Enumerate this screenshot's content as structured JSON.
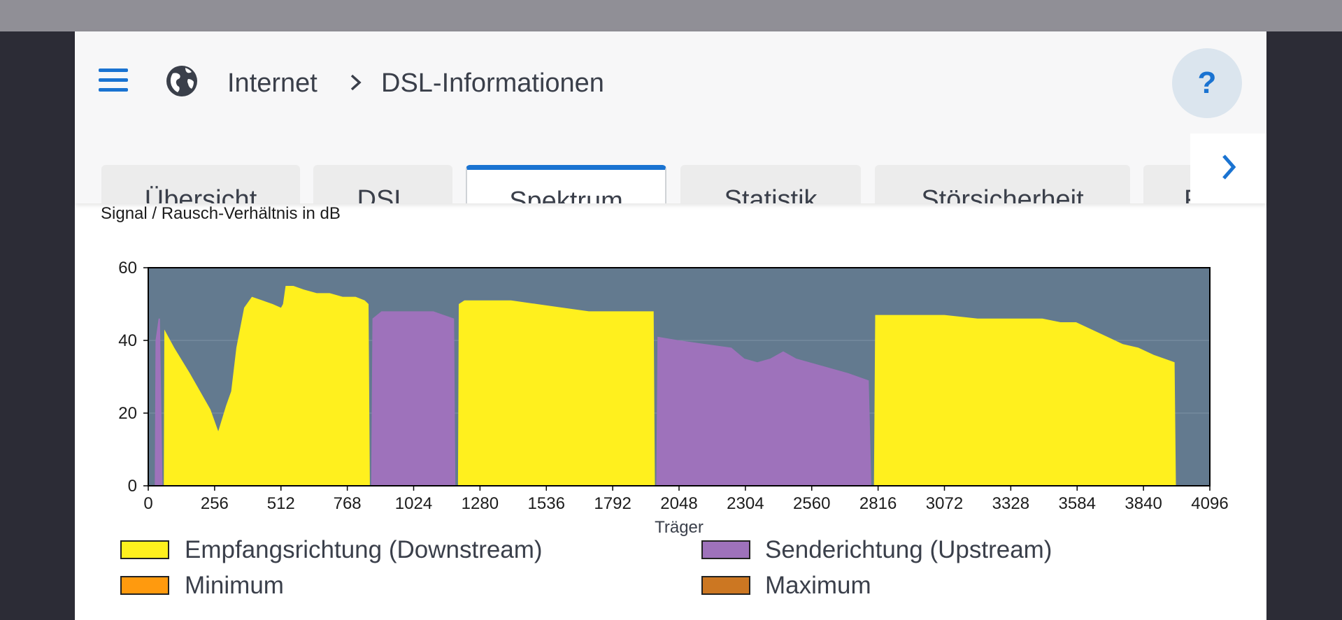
{
  "breadcrumb": {
    "section": "Internet",
    "page": "DSL-Informationen"
  },
  "help_label": "?",
  "tabs": [
    {
      "label": "Übersicht",
      "active": false
    },
    {
      "label": "DSL",
      "active": false
    },
    {
      "label": "Spektrum",
      "active": true
    },
    {
      "label": "Statistik",
      "active": false
    },
    {
      "label": "Störsicherheit",
      "active": false
    },
    {
      "label": "Fe…",
      "active": false
    }
  ],
  "colors": {
    "accent": "#1a73d1",
    "downstream": "#fff01e",
    "upstream": "#9e72bb",
    "minimum": "#ff9a0e",
    "maximum": "#cc7722",
    "plot_bg": "#637a8f"
  },
  "chart_data": {
    "type": "area",
    "title": "Signal / Rausch-Verhältnis in dB",
    "xlabel": "Träger",
    "ylabel": "",
    "xlim": [
      0,
      4096
    ],
    "ylim": [
      0,
      60
    ],
    "xticks": [
      0,
      256,
      512,
      768,
      1024,
      1280,
      1536,
      1792,
      2048,
      2304,
      2560,
      2816,
      3072,
      3328,
      3584,
      3840,
      4096
    ],
    "yticks": [
      0,
      20,
      40,
      60
    ],
    "grid": true,
    "legend_position": "bottom",
    "series": [
      {
        "name": "Senderichtung (Upstream)",
        "color": "#9e72bb",
        "segments": [
          [
            [
              25,
              0
            ],
            [
              28,
              40
            ],
            [
              40,
              46
            ],
            [
              45,
              46
            ],
            [
              55,
              0
            ]
          ],
          [
            [
              860,
              0
            ],
            [
              865,
              46
            ],
            [
              900,
              48
            ],
            [
              1000,
              48
            ],
            [
              1100,
              48
            ],
            [
              1180,
              46
            ],
            [
              1185,
              0
            ]
          ],
          [
            [
              1960,
              0
            ],
            [
              1965,
              41
            ],
            [
              2050,
              40
            ],
            [
              2150,
              39
            ],
            [
              2250,
              38
            ],
            [
              2300,
              35
            ],
            [
              2350,
              34
            ],
            [
              2400,
              35
            ],
            [
              2450,
              37
            ],
            [
              2500,
              35
            ],
            [
              2600,
              33
            ],
            [
              2700,
              31
            ],
            [
              2780,
              29
            ],
            [
              2790,
              0
            ]
          ]
        ]
      },
      {
        "name": "Empfangsrichtung (Downstream)",
        "color": "#fff01e",
        "segments": [
          [
            [
              60,
              0
            ],
            [
              62,
              43
            ],
            [
              100,
              38
            ],
            [
              160,
              31
            ],
            [
              200,
              26
            ],
            [
              240,
              21
            ],
            [
              270,
              15
            ],
            [
              300,
              22
            ],
            [
              320,
              26
            ],
            [
              340,
              38
            ],
            [
              370,
              49
            ],
            [
              400,
              52
            ],
            [
              440,
              51
            ],
            [
              480,
              50
            ],
            [
              512,
              49
            ],
            [
              520,
              50
            ],
            [
              530,
              55
            ],
            [
              560,
              55
            ],
            [
              600,
              54
            ],
            [
              650,
              53
            ],
            [
              700,
              53
            ],
            [
              750,
              52
            ],
            [
              800,
              52
            ],
            [
              835,
              51
            ],
            [
              850,
              50
            ],
            [
              855,
              0
            ]
          ],
          [
            [
              1195,
              0
            ],
            [
              1198,
              50
            ],
            [
              1220,
              51
            ],
            [
              1300,
              51
            ],
            [
              1400,
              51
            ],
            [
              1500,
              50
            ],
            [
              1600,
              49
            ],
            [
              1700,
              48
            ],
            [
              1792,
              48
            ],
            [
              1900,
              48
            ],
            [
              1950,
              48
            ],
            [
              1955,
              0
            ]
          ],
          [
            [
              2800,
              0
            ],
            [
              2805,
              47
            ],
            [
              2850,
              47
            ],
            [
              3000,
              47
            ],
            [
              3072,
              47
            ],
            [
              3200,
              46
            ],
            [
              3328,
              46
            ],
            [
              3450,
              46
            ],
            [
              3520,
              45
            ],
            [
              3580,
              45
            ],
            [
              3640,
              43
            ],
            [
              3700,
              41
            ],
            [
              3760,
              39
            ],
            [
              3820,
              38
            ],
            [
              3880,
              36
            ],
            [
              3920,
              35
            ],
            [
              3960,
              34
            ],
            [
              3965,
              0
            ]
          ]
        ]
      }
    ]
  },
  "legend": {
    "downstream": "Empfangsrichtung (Downstream)",
    "upstream": "Senderichtung (Upstream)",
    "minimum": "Minimum",
    "maximum": "Maximum"
  }
}
